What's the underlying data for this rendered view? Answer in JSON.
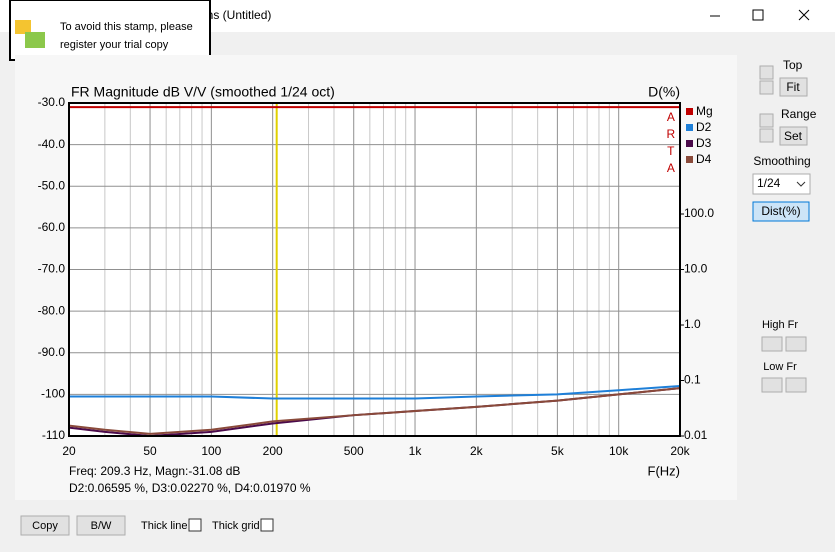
{
  "window": {
    "title": "ons (Untitled)",
    "stamp": [
      "To avoid this stamp, please",
      "register your trial copy"
    ]
  },
  "chart_data": {
    "type": "line",
    "title": "FR Magnitude dB V/V (smoothed 1/24 oct)",
    "y2_label": "D(%)",
    "x_label": "F(Hz)",
    "watermark": "ARTA",
    "readout": [
      "Freq: 209.3 Hz, Magn:-31.08 dB",
      "D2:0.06595 %, D3:0.02270 %, D4:0.01970 %"
    ],
    "x_scale": "log",
    "grid": true,
    "legend": "right",
    "cursor_x": 209.3,
    "cursor_color": "#e0d000",
    "x": [
      20,
      30,
      50,
      100,
      200,
      500,
      1000,
      2000,
      5000,
      10000,
      20000
    ],
    "series": [
      {
        "name": "Mg",
        "color": "#c00000",
        "values": [
          -31,
          -31,
          -31,
          -31,
          -31,
          -31,
          -31,
          -31,
          -31,
          -31,
          -31
        ]
      },
      {
        "name": "D2",
        "color": "#1e7fd8",
        "values": [
          -100.5,
          -100.5,
          -100.5,
          -100.5,
          -101,
          -101,
          -101,
          -100.5,
          -100,
          -99,
          -98
        ]
      },
      {
        "name": "D3",
        "color": "#4a0a4a",
        "values": [
          -108,
          -109,
          -110,
          -109,
          -107,
          -105,
          -104,
          -103,
          -101.5,
          -100,
          -98.5
        ]
      },
      {
        "name": "D4",
        "color": "#8a4a3a",
        "values": [
          -107.5,
          -108.5,
          -109.5,
          -108.5,
          -106.5,
          -105,
          -104,
          -103,
          -101.5,
          -100,
          -98.5
        ]
      }
    ],
    "xlim": [
      20,
      20000
    ],
    "xticks": [
      20,
      50,
      100,
      200,
      500,
      {
        "value": 1000,
        "label": "1k"
      },
      {
        "value": 2000,
        "label": "2k"
      },
      {
        "value": 5000,
        "label": "5k"
      },
      {
        "value": 10000,
        "label": "10k"
      },
      {
        "value": 20000,
        "label": "20k"
      }
    ],
    "x_minor_grid": [
      30,
      40,
      60,
      70,
      80,
      90,
      300,
      400,
      600,
      700,
      800,
      900,
      3000,
      4000,
      6000,
      7000,
      8000,
      9000
    ],
    "ylim": [
      -110,
      -30
    ],
    "yticks": [
      {
        "value": -30,
        "label": "-30.0"
      },
      {
        "value": -40,
        "label": "-40.0"
      },
      {
        "value": -50,
        "label": "-50.0"
      },
      {
        "value": -60,
        "label": "-60.0"
      },
      {
        "value": -70,
        "label": "-70.0"
      },
      {
        "value": -80,
        "label": "-80.0"
      },
      {
        "value": -90,
        "label": "-90.0"
      },
      {
        "value": -100,
        "label": "-100"
      },
      {
        "value": -110,
        "label": "-110"
      }
    ],
    "y2_scale": "log",
    "y2lim": [
      0.01,
      10000
    ],
    "y2ticks": [
      {
        "value": 100,
        "label": "100.0"
      },
      {
        "value": 10,
        "label": "10.0"
      },
      {
        "value": 1,
        "label": "1.0"
      },
      0.1,
      0.01
    ]
  },
  "side_panel": {
    "top": "Top",
    "fit": "Fit",
    "range": "Range",
    "set": "Set",
    "smoothing": "Smoothing",
    "smoothing_value": "1/24",
    "dist": "Dist(%)",
    "high_fr": "High Fr",
    "low_fr": "Low Fr"
  },
  "bottom_bar": {
    "copy": "Copy",
    "bw": "B/W",
    "thick_line": "Thick line",
    "thick_grid": "Thick grid"
  }
}
